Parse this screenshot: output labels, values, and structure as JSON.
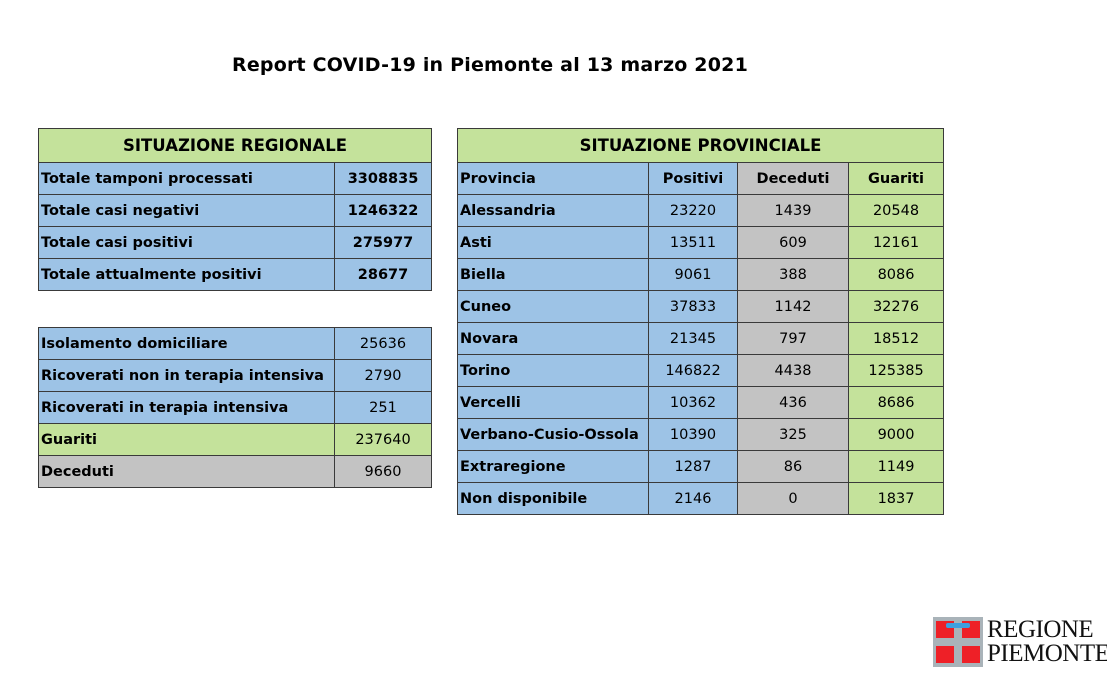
{
  "title": "Report COVID-19 in Piemonte al 13 marzo 2021",
  "colors": {
    "header_green": "#c4e29b",
    "blue": "#9dc3e6",
    "grey": "#c3c3c3",
    "green": "#c4e29b",
    "logo_red": "#ee2027",
    "logo_grey": "#a9b3b9",
    "logo_blue": "#3f9fe0"
  },
  "regional": {
    "header": "SITUAZIONE REGIONALE",
    "summary": [
      {
        "label": "Totale tamponi processati",
        "value": "3308835"
      },
      {
        "label": "Totale casi negativi",
        "value": "1246322"
      },
      {
        "label": "Totale casi positivi",
        "value": "275977"
      },
      {
        "label": "Totale attualmente positivi",
        "value": "28677"
      }
    ],
    "details": [
      {
        "label": "Isolamento domiciliare",
        "value": "25636"
      },
      {
        "label": "Ricoverati non in terapia intensiva",
        "value": "2790"
      },
      {
        "label": "Ricoverati in terapia intensiva",
        "value": "251"
      },
      {
        "label": "Guariti",
        "value": "237640"
      },
      {
        "label": "Deceduti",
        "value": "9660"
      }
    ]
  },
  "provincial": {
    "header": "SITUAZIONE PROVINCIALE",
    "columns": [
      "Provincia",
      "Positivi",
      "Deceduti",
      "Guariti"
    ],
    "rows": [
      {
        "provincia": "Alessandria",
        "positivi": "23220",
        "deceduti": "1439",
        "guariti": "20548"
      },
      {
        "provincia": "Asti",
        "positivi": "13511",
        "deceduti": "609",
        "guariti": "12161"
      },
      {
        "provincia": "Biella",
        "positivi": "9061",
        "deceduti": "388",
        "guariti": "8086"
      },
      {
        "provincia": "Cuneo",
        "positivi": "37833",
        "deceduti": "1142",
        "guariti": "32276"
      },
      {
        "provincia": "Novara",
        "positivi": "21345",
        "deceduti": "797",
        "guariti": "18512"
      },
      {
        "provincia": "Torino",
        "positivi": "146822",
        "deceduti": "4438",
        "guariti": "125385"
      },
      {
        "provincia": "Vercelli",
        "positivi": "10362",
        "deceduti": "436",
        "guariti": "8686"
      },
      {
        "provincia": "Verbano-Cusio-Ossola",
        "positivi": "10390",
        "deceduti": "325",
        "guariti": "9000"
      },
      {
        "provincia": "Extraregione",
        "positivi": "1287",
        "deceduti": "86",
        "guariti": "1149"
      },
      {
        "provincia": "Non disponibile",
        "positivi": "2146",
        "deceduti": "0",
        "guariti": "1837"
      }
    ]
  },
  "logo": {
    "line1": "REGIONE",
    "line2": "PIEMONTE",
    "icon": "piemonte-cross-emblem-icon"
  }
}
